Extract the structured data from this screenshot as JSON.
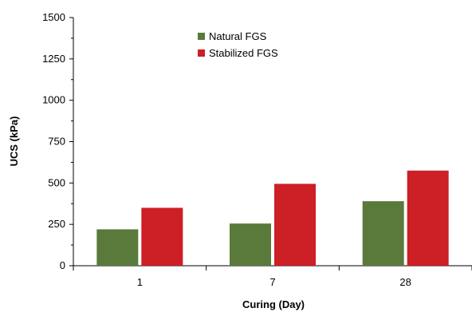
{
  "chart_data": {
    "type": "bar",
    "categories": [
      "1",
      "7",
      "28"
    ],
    "series": [
      {
        "name": "Natural FGS",
        "values": [
          220,
          255,
          390
        ],
        "color": "#5a7a3c"
      },
      {
        "name": "Stabilized FGS",
        "values": [
          350,
          495,
          575
        ],
        "color": "#cc1f26"
      }
    ],
    "xlabel": "Curing (Day)",
    "ylabel": "UCS (kPa)",
    "ylim": [
      0,
      1500
    ],
    "yticks": [
      0,
      250,
      500,
      750,
      1000,
      1250,
      1500
    ],
    "legend_position": "top-center",
    "grid": false
  }
}
